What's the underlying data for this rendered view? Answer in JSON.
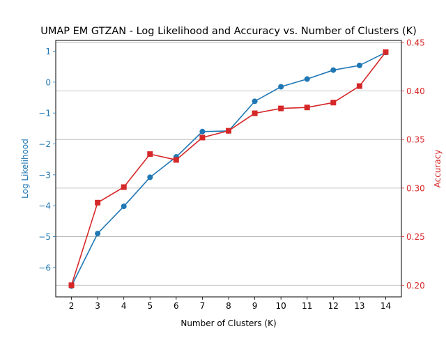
{
  "chart_data": {
    "type": "line",
    "title": "UMAP EM GTZAN - Log Likelihood and Accuracy vs. Number of Clusters (K)",
    "xlabel": "Number of Clusters (K)",
    "ylabel_left": "Log Likelihood",
    "ylabel_right": "Accuracy",
    "x": [
      2,
      3,
      4,
      5,
      6,
      7,
      8,
      9,
      10,
      11,
      12,
      13,
      14
    ],
    "x_ticks": [
      "2",
      "3",
      "4",
      "5",
      "6",
      "7",
      "8",
      "9",
      "10",
      "11",
      "12",
      "13",
      "14"
    ],
    "ylim_left": [
      -6.95,
      1.35
    ],
    "ylim_right": [
      0.188,
      0.452
    ],
    "yticks_left": [
      1,
      0,
      -1,
      -2,
      -3,
      -4,
      -5,
      -6
    ],
    "yticks_left_labels": [
      "1",
      "0",
      "−1",
      "−2",
      "−3",
      "−4",
      "−5",
      "−6"
    ],
    "yticks_right": [
      0.45,
      0.4,
      0.35,
      0.3,
      0.25,
      0.2
    ],
    "yticks_right_labels": [
      "0.45",
      "0.40",
      "0.35",
      "0.30",
      "0.25",
      "0.20"
    ],
    "grid": "horizontal, right axis",
    "series": [
      {
        "name": "Log Likelihood",
        "axis": "left",
        "marker": "circle",
        "color": "#1f77b4",
        "values": [
          -6.6,
          -4.9,
          -4.02,
          -3.08,
          -2.42,
          -1.6,
          -1.58,
          -0.62,
          -0.15,
          0.1,
          0.39,
          0.54,
          0.96
        ]
      },
      {
        "name": "Accuracy",
        "axis": "right",
        "marker": "square",
        "color": "#d62728",
        "values": [
          0.2,
          0.285,
          0.301,
          0.335,
          0.329,
          0.352,
          0.359,
          0.377,
          0.382,
          0.383,
          0.388,
          0.405,
          0.44
        ]
      }
    ]
  }
}
